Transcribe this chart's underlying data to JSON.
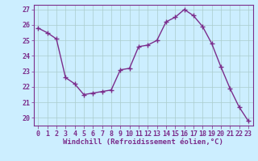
{
  "x": [
    0,
    1,
    2,
    3,
    4,
    5,
    6,
    7,
    8,
    9,
    10,
    11,
    12,
    13,
    14,
    15,
    16,
    17,
    18,
    19,
    20,
    21,
    22,
    23
  ],
  "y": [
    25.8,
    25.5,
    25.1,
    22.6,
    22.2,
    21.5,
    21.6,
    21.7,
    21.8,
    23.1,
    23.2,
    24.6,
    24.7,
    25.0,
    26.2,
    26.5,
    27.0,
    26.6,
    25.9,
    24.8,
    23.3,
    21.9,
    20.7,
    19.8
  ],
  "line_color": "#7b2d8b",
  "marker": "+",
  "marker_size": 4,
  "marker_lw": 1.0,
  "line_width": 1.0,
  "bg_color": "#cceeff",
  "grid_color": "#aacccc",
  "xlabel": "Windchill (Refroidissement éolien,°C)",
  "xlabel_color": "#7b2d8b",
  "tick_color": "#7b2d8b",
  "spine_color": "#7b2d8b",
  "ylim": [
    19.5,
    27.3
  ],
  "yticks": [
    20,
    21,
    22,
    23,
    24,
    25,
    26,
    27
  ],
  "xlim": [
    -0.5,
    23.5
  ],
  "xticks": [
    0,
    1,
    2,
    3,
    4,
    5,
    6,
    7,
    8,
    9,
    10,
    11,
    12,
    13,
    14,
    15,
    16,
    17,
    18,
    19,
    20,
    21,
    22,
    23
  ],
  "tick_fontsize": 6,
  "xlabel_fontsize": 6.5
}
